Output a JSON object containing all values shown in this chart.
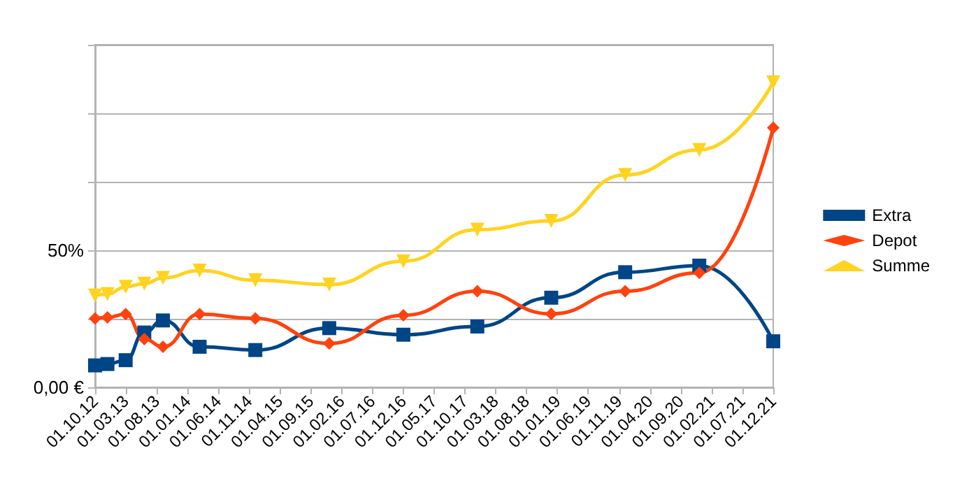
{
  "chart_data": {
    "type": "line",
    "x": [
      "2012-10-01",
      "2012-12-01",
      "2013-03-01",
      "2013-06-01",
      "2013-09-01",
      "2014-03-01",
      "2014-12-01",
      "2015-12-01",
      "2016-12-01",
      "2017-12-01",
      "2018-12-01",
      "2019-12-01",
      "2020-12-01",
      "2021-12-01"
    ],
    "series": [
      {
        "name": "Extra",
        "color": "#004586",
        "marker": "square",
        "values": [
          8.0,
          8.5,
          9.9,
          20.0,
          24.4,
          14.8,
          13.6,
          21.6,
          19.2,
          22.2,
          32.7,
          42.0,
          44.4,
          16.8
        ]
      },
      {
        "name": "Depot",
        "color": "#ff420e",
        "marker": "diamond",
        "values": [
          25.1,
          25.5,
          26.7,
          17.6,
          14.8,
          26.7,
          25.1,
          16.0,
          26.3,
          35.1,
          26.8,
          35.1,
          41.8,
          94.7
        ]
      },
      {
        "name": "Summe",
        "color": "#ffd320",
        "marker": "triangle",
        "values": [
          33.5,
          34.0,
          36.7,
          37.8,
          39.9,
          42.6,
          39.1,
          37.5,
          46.0,
          57.5,
          60.7,
          77.5,
          86.6,
          111.3
        ]
      }
    ],
    "xlim": [
      "2012-10-01",
      "2021-12-01"
    ],
    "xticks": [
      {
        "value": "2012-10-01",
        "label": "01.10.12"
      },
      {
        "value": "2013-03-01",
        "label": "01.03.13"
      },
      {
        "value": "2013-08-01",
        "label": "01.08.13"
      },
      {
        "value": "2014-01-01",
        "label": "01.01.14"
      },
      {
        "value": "2014-06-01",
        "label": "01.06.14"
      },
      {
        "value": "2014-11-01",
        "label": "01.11.14"
      },
      {
        "value": "2015-04-01",
        "label": "01.04.15"
      },
      {
        "value": "2015-09-01",
        "label": "01.09.15"
      },
      {
        "value": "2016-02-01",
        "label": "01.02.16"
      },
      {
        "value": "2016-07-01",
        "label": "01.07.16"
      },
      {
        "value": "2016-12-01",
        "label": "01.12.16"
      },
      {
        "value": "2017-05-01",
        "label": "01.05.17"
      },
      {
        "value": "2017-10-01",
        "label": "01.10.17"
      },
      {
        "value": "2018-03-01",
        "label": "01.03.18"
      },
      {
        "value": "2018-08-01",
        "label": "01.08.18"
      },
      {
        "value": "2019-01-01",
        "label": "01.01.19"
      },
      {
        "value": "2019-06-01",
        "label": "01.06.19"
      },
      {
        "value": "2019-11-01",
        "label": "01.11.19"
      },
      {
        "value": "2020-04-01",
        "label": "01.04.20"
      },
      {
        "value": "2020-09-01",
        "label": "01.09.20"
      },
      {
        "value": "2021-02-01",
        "label": "01.02.21"
      },
      {
        "value": "2021-07-01",
        "label": "01.07.21"
      },
      {
        "value": "2021-12-01",
        "label": "01.12.21"
      }
    ],
    "ylim": [
      0,
      125
    ],
    "yticks": [
      {
        "value": 0,
        "label": "0,00 €"
      },
      {
        "value": 25,
        "label": null
      },
      {
        "value": 50,
        "label": "50%"
      },
      {
        "value": 75,
        "label": null
      },
      {
        "value": 100,
        "label": null
      },
      {
        "value": 125,
        "label": null
      }
    ],
    "grid": "y",
    "legend": "right",
    "line_style": "solid"
  }
}
